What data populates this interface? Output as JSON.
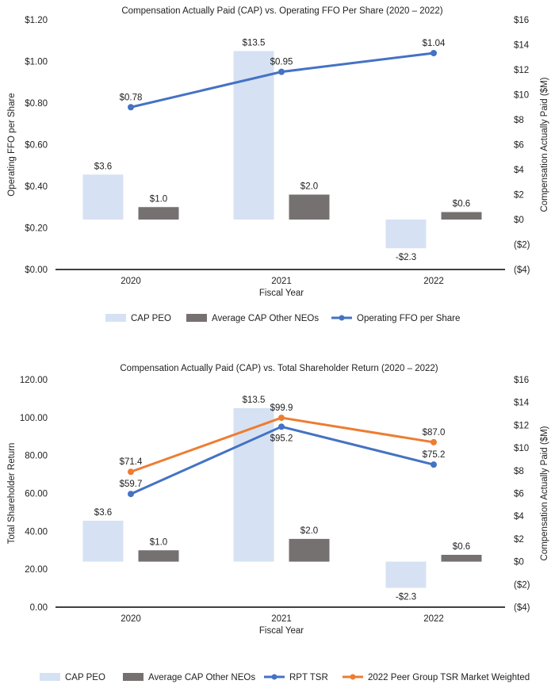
{
  "colors": {
    "cap_peo": "#d6e2f3",
    "avg_cap": "#767171",
    "rpt_tsr": "#4472c4",
    "peer_tsr": "#ed7d31",
    "axis": "#000000",
    "text": "#222222"
  },
  "chart_data": [
    {
      "type": "bar",
      "title": "Compensation Actually Paid (CAP) vs. Operating FFO Per Share (2020 – 2022)",
      "xlabel": "Fiscal Year",
      "ylabel": "Operating FFO per Share",
      "y2label": "Compensation Actually Paid ($M)",
      "categories": [
        "2020",
        "2021",
        "2022"
      ],
      "ylim": [
        0,
        1.2
      ],
      "yticks": [
        0,
        0.2,
        0.4,
        0.6,
        0.8,
        1.0,
        1.2
      ],
      "yticklabels": [
        "$0.00",
        "$0.20",
        "$0.40",
        "$0.60",
        "$0.80",
        "$1.00",
        "$1.20"
      ],
      "y2lim": [
        -4,
        16
      ],
      "y2ticks": [
        -4,
        -2,
        0,
        2,
        4,
        6,
        8,
        10,
        12,
        14,
        16
      ],
      "y2ticklabels": [
        "($4)",
        "($2)",
        "$0",
        "$2",
        "$4",
        "$6",
        "$8",
        "$10",
        "$12",
        "$14",
        "$16"
      ],
      "series": [
        {
          "name": "CAP PEO",
          "kind": "bar",
          "axis": "right",
          "colorKey": "cap_peo",
          "values": [
            3.6,
            13.5,
            -2.3
          ],
          "labels": [
            "$3.6",
            "$13.5",
            "-$2.3"
          ]
        },
        {
          "name": "Average CAP Other NEOs",
          "kind": "bar",
          "axis": "right",
          "colorKey": "avg_cap",
          "values": [
            1.0,
            2.0,
            0.6
          ],
          "labels": [
            "$1.0",
            "$2.0",
            "$0.6"
          ]
        },
        {
          "name": "Operating FFO per Share",
          "kind": "line",
          "axis": "left",
          "colorKey": "rpt_tsr",
          "values": [
            0.78,
            0.95,
            1.04
          ],
          "labels": [
            "$0.78",
            "$0.95",
            "$1.04"
          ],
          "labelPos": [
            "above",
            "above",
            "above"
          ]
        }
      ],
      "legend": [
        "CAP PEO",
        "Average CAP Other NEOs",
        "Operating FFO per Share"
      ]
    },
    {
      "type": "bar",
      "title": "Compensation Actually Paid (CAP) vs. Total Shareholder Return (2020 – 2022)",
      "xlabel": "Fiscal Year",
      "ylabel": "Total Shareholder Return",
      "y2label": "Compensation Actually Paid ($M)",
      "categories": [
        "2020",
        "2021",
        "2022"
      ],
      "ylim": [
        0,
        120
      ],
      "yticks": [
        0,
        20,
        40,
        60,
        80,
        100,
        120
      ],
      "yticklabels": [
        "0.00",
        "20.00",
        "40.00",
        "60.00",
        "80.00",
        "100.00",
        "120.00"
      ],
      "y2lim": [
        -4,
        16
      ],
      "y2ticks": [
        -4,
        -2,
        0,
        2,
        4,
        6,
        8,
        10,
        12,
        14,
        16
      ],
      "y2ticklabels": [
        "($4)",
        "($2)",
        "$0",
        "$2",
        "$4",
        "$6",
        "$8",
        "$10",
        "$12",
        "$14",
        "$16"
      ],
      "series": [
        {
          "name": "CAP PEO",
          "kind": "bar",
          "axis": "right",
          "colorKey": "cap_peo",
          "values": [
            3.6,
            13.5,
            -2.3
          ],
          "labels": [
            "$3.6",
            "$13.5",
            "-$2.3"
          ]
        },
        {
          "name": "Average CAP Other NEOs",
          "kind": "bar",
          "axis": "right",
          "colorKey": "avg_cap",
          "values": [
            1.0,
            2.0,
            0.6
          ],
          "labels": [
            "$1.0",
            "$2.0",
            "$0.6"
          ]
        },
        {
          "name": "RPT TSR",
          "kind": "line",
          "axis": "left",
          "colorKey": "rpt_tsr",
          "values": [
            59.7,
            95.2,
            75.2
          ],
          "labels": [
            "$59.7",
            "$95.2",
            "$75.2"
          ],
          "labelPos": [
            "above",
            "below",
            "above"
          ]
        },
        {
          "name": "2022 Peer Group TSR Market Weighted",
          "kind": "line",
          "axis": "left",
          "colorKey": "peer_tsr",
          "values": [
            71.4,
            99.9,
            87.0
          ],
          "labels": [
            "$71.4",
            "$99.9",
            "$87.0"
          ],
          "labelPos": [
            "above",
            "above",
            "above"
          ]
        }
      ],
      "legend": [
        "CAP PEO",
        "Average CAP Other NEOs",
        "RPT TSR",
        "2022 Peer Group TSR Market Weighted"
      ]
    }
  ]
}
